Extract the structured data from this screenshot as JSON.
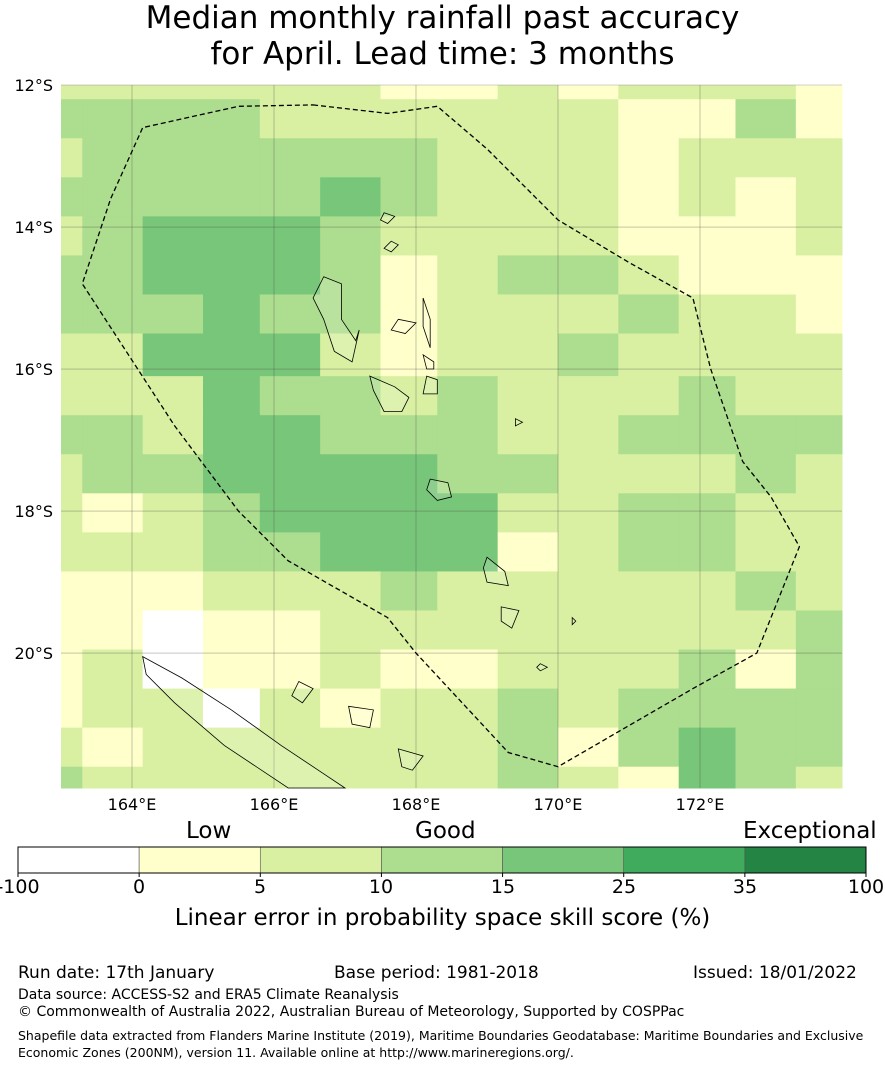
{
  "title": {
    "line1": "Median monthly rainfall past accuracy",
    "line2": "for April. Lead time: 3 months"
  },
  "map": {
    "lon_range": [
      163.0,
      174.0
    ],
    "lat_range": [
      -21.9,
      -12.0
    ],
    "lon_ticks": [
      {
        "value": 164,
        "label": "164°E"
      },
      {
        "value": 166,
        "label": "166°E"
      },
      {
        "value": 168,
        "label": "168°E"
      },
      {
        "value": 170,
        "label": "170°E"
      },
      {
        "value": 172,
        "label": "172°E"
      }
    ],
    "lat_ticks": [
      {
        "value": -12,
        "label": "12°S"
      },
      {
        "value": -14,
        "label": "14°S"
      },
      {
        "value": -16,
        "label": "16°S"
      },
      {
        "value": -18,
        "label": "18°S"
      },
      {
        "value": -20,
        "label": "20°S"
      }
    ],
    "grid_on": true,
    "cell_lon_edges": [
      163.0,
      163.3,
      164.15,
      165.0,
      165.8,
      166.65,
      167.5,
      168.3,
      169.15,
      170.0,
      170.85,
      171.7,
      172.5,
      173.35,
      174.0
    ],
    "cell_lat_edges": [
      -12.0,
      -12.2,
      -12.75,
      -13.3,
      -13.85,
      -14.4,
      -14.95,
      -15.5,
      -16.1,
      -16.65,
      -17.2,
      -17.75,
      -18.3,
      -18.85,
      -19.4,
      -19.95,
      -20.5,
      -21.05,
      -21.6,
      -21.9
    ],
    "skill_grid": [
      [
        1,
        1,
        1,
        1,
        1,
        1,
        0,
        0,
        1,
        0,
        1,
        1,
        1,
        0
      ],
      [
        2,
        2,
        2,
        2,
        1,
        1,
        1,
        1,
        1,
        1,
        0,
        0,
        2,
        0
      ],
      [
        1,
        2,
        2,
        2,
        2,
        2,
        2,
        1,
        1,
        1,
        0,
        1,
        1,
        1
      ],
      [
        2,
        2,
        2,
        2,
        2,
        3,
        2,
        1,
        1,
        1,
        0,
        1,
        0,
        1
      ],
      [
        1,
        2,
        3,
        3,
        3,
        2,
        1,
        1,
        1,
        1,
        0,
        0,
        0,
        1
      ],
      [
        2,
        2,
        3,
        3,
        3,
        2,
        0,
        1,
        2,
        2,
        1,
        0,
        0,
        0
      ],
      [
        2,
        2,
        2,
        3,
        2,
        2,
        0,
        1,
        1,
        1,
        2,
        1,
        1,
        0
      ],
      [
        1,
        1,
        3,
        3,
        3,
        1,
        0,
        1,
        1,
        2,
        1,
        1,
        1,
        1
      ],
      [
        1,
        1,
        1,
        3,
        2,
        2,
        1,
        2,
        1,
        1,
        1,
        2,
        1,
        1
      ],
      [
        2,
        2,
        1,
        3,
        3,
        2,
        2,
        2,
        1,
        1,
        2,
        2,
        2,
        2
      ],
      [
        1,
        2,
        2,
        3,
        3,
        3,
        3,
        2,
        2,
        1,
        1,
        1,
        2,
        1
      ],
      [
        1,
        0,
        1,
        2,
        3,
        3,
        3,
        3,
        1,
        1,
        2,
        2,
        1,
        1
      ],
      [
        1,
        1,
        1,
        2,
        2,
        3,
        3,
        3,
        0,
        1,
        2,
        2,
        1,
        1
      ],
      [
        0,
        0,
        0,
        1,
        1,
        1,
        2,
        1,
        1,
        1,
        1,
        1,
        2,
        1
      ],
      [
        0,
        0,
        -1,
        0,
        0,
        1,
        1,
        1,
        1,
        1,
        1,
        1,
        1,
        2
      ],
      [
        0,
        1,
        -1,
        0,
        0,
        1,
        0,
        0,
        1,
        1,
        1,
        2,
        0,
        2
      ],
      [
        0,
        1,
        1,
        -1,
        1,
        0,
        1,
        1,
        2,
        1,
        2,
        2,
        2,
        2
      ],
      [
        1,
        0,
        1,
        1,
        1,
        1,
        1,
        1,
        2,
        0,
        2,
        3,
        2,
        2
      ],
      [
        2,
        1,
        1,
        1,
        1,
        1,
        1,
        1,
        2,
        1,
        0,
        3,
        2,
        1
      ]
    ],
    "eez_boundary": [
      [
        166.55,
        -12.28
      ],
      [
        167.6,
        -12.4
      ],
      [
        168.3,
        -12.3
      ],
      [
        169.0,
        -12.9
      ],
      [
        170.0,
        -13.9
      ],
      [
        171.0,
        -14.5
      ],
      [
        171.9,
        -15.0
      ],
      [
        172.15,
        -16.0
      ],
      [
        172.6,
        -17.3
      ],
      [
        173.0,
        -17.8
      ],
      [
        173.4,
        -18.5
      ],
      [
        172.8,
        -20.0
      ],
      [
        171.9,
        -20.5
      ],
      [
        170.0,
        -21.6
      ],
      [
        169.3,
        -21.4
      ],
      [
        168.0,
        -20.0
      ],
      [
        167.6,
        -19.5
      ],
      [
        166.2,
        -18.7
      ],
      [
        165.5,
        -18.0
      ],
      [
        164.6,
        -16.8
      ],
      [
        163.3,
        -14.8
      ],
      [
        163.7,
        -13.6
      ],
      [
        164.15,
        -12.6
      ],
      [
        165.5,
        -12.3
      ]
    ],
    "islands": [
      [
        [
          166.7,
          -14.7
        ],
        [
          166.95,
          -14.8
        ],
        [
          166.95,
          -15.3
        ],
        [
          167.15,
          -15.6
        ],
        [
          167.2,
          -15.45
        ],
        [
          167.1,
          -15.9
        ],
        [
          166.85,
          -15.75
        ],
        [
          166.7,
          -15.3
        ],
        [
          166.55,
          -15.0
        ]
      ],
      [
        [
          167.35,
          -16.1
        ],
        [
          167.7,
          -16.25
        ],
        [
          167.9,
          -16.4
        ],
        [
          167.8,
          -16.6
        ],
        [
          167.55,
          -16.6
        ],
        [
          167.4,
          -16.3
        ]
      ],
      [
        [
          168.1,
          -15.0
        ],
        [
          168.2,
          -15.3
        ],
        [
          168.2,
          -15.7
        ],
        [
          168.1,
          -15.4
        ]
      ],
      [
        [
          167.75,
          -15.3
        ],
        [
          168.0,
          -15.35
        ],
        [
          167.85,
          -15.5
        ],
        [
          167.65,
          -15.45
        ]
      ],
      [
        [
          168.1,
          -15.8
        ],
        [
          168.25,
          -15.9
        ],
        [
          168.25,
          -16.0
        ],
        [
          168.15,
          -16.0
        ]
      ],
      [
        [
          168.15,
          -16.1
        ],
        [
          168.3,
          -16.15
        ],
        [
          168.3,
          -16.35
        ],
        [
          168.1,
          -16.35
        ]
      ],
      [
        [
          168.2,
          -17.55
        ],
        [
          168.45,
          -17.6
        ],
        [
          168.5,
          -17.8
        ],
        [
          168.3,
          -17.85
        ],
        [
          168.15,
          -17.7
        ]
      ],
      [
        [
          169.0,
          -18.65
        ],
        [
          169.25,
          -18.85
        ],
        [
          169.3,
          -19.05
        ],
        [
          169.0,
          -19.0
        ],
        [
          168.95,
          -18.8
        ]
      ],
      [
        [
          169.2,
          -19.35
        ],
        [
          169.45,
          -19.4
        ],
        [
          169.35,
          -19.65
        ],
        [
          169.2,
          -19.55
        ]
      ],
      [
        [
          169.75,
          -20.15
        ],
        [
          169.85,
          -20.2
        ],
        [
          169.75,
          -20.25
        ],
        [
          169.7,
          -20.2
        ]
      ],
      [
        [
          167.55,
          -13.8
        ],
        [
          167.7,
          -13.85
        ],
        [
          167.6,
          -13.95
        ],
        [
          167.5,
          -13.9
        ]
      ],
      [
        [
          167.65,
          -14.2
        ],
        [
          167.75,
          -14.25
        ],
        [
          167.65,
          -14.35
        ],
        [
          167.55,
          -14.3
        ]
      ],
      [
        [
          164.15,
          -20.05
        ],
        [
          164.7,
          -20.35
        ],
        [
          165.4,
          -20.8
        ],
        [
          166.1,
          -21.3
        ],
        [
          166.7,
          -21.7
        ],
        [
          167.0,
          -21.9
        ],
        [
          166.2,
          -21.9
        ],
        [
          165.3,
          -21.3
        ],
        [
          164.6,
          -20.7
        ],
        [
          164.2,
          -20.3
        ]
      ],
      [
        [
          166.35,
          -20.4
        ],
        [
          166.55,
          -20.5
        ],
        [
          166.4,
          -20.7
        ],
        [
          166.25,
          -20.6
        ]
      ],
      [
        [
          167.05,
          -20.75
        ],
        [
          167.4,
          -20.8
        ],
        [
          167.35,
          -21.05
        ],
        [
          167.1,
          -21.0
        ]
      ],
      [
        [
          167.75,
          -21.35
        ],
        [
          168.1,
          -21.45
        ],
        [
          167.95,
          -21.65
        ],
        [
          167.8,
          -21.6
        ]
      ],
      [
        [
          169.4,
          -16.7
        ],
        [
          169.5,
          -16.75
        ],
        [
          169.4,
          -16.8
        ]
      ],
      [
        [
          170.2,
          -19.5
        ],
        [
          170.25,
          -19.55
        ],
        [
          170.2,
          -19.6
        ]
      ]
    ]
  },
  "colorbar": {
    "categories": [
      {
        "label": "Low"
      },
      {
        "label": "Good"
      },
      {
        "label": "Exceptional"
      }
    ],
    "boundaries": [
      "-100",
      "0",
      "5",
      "10",
      "15",
      "25",
      "35",
      "100"
    ],
    "colors": [
      "#ffffff",
      "#ffffcc",
      "#d9f0a3",
      "#addd8e",
      "#78c679",
      "#41ab5d",
      "#238443"
    ],
    "title": "Linear error in probability space skill score (%)"
  },
  "footer": {
    "run_date": "Run date: 17th January",
    "base_period": "Base period: 1981-2018",
    "issued": "Issued: 18/01/2022",
    "data_source": "Data source: ACCESS-S2 and ERA5 Climate Reanalysis",
    "copyright": "© Commonwealth of Australia 2022, Australian Bureau of Meteorology, Supported by COSPPac",
    "shapefile_line1": "Shapefile data extracted from Flanders Marine Institute (2019), Maritime Boundaries Geodatabase: Maritime Boundaries and Exclusive",
    "shapefile_line2": "Economic Zones (200NM), version 11. Available online at http://www.marineregions.org/."
  }
}
